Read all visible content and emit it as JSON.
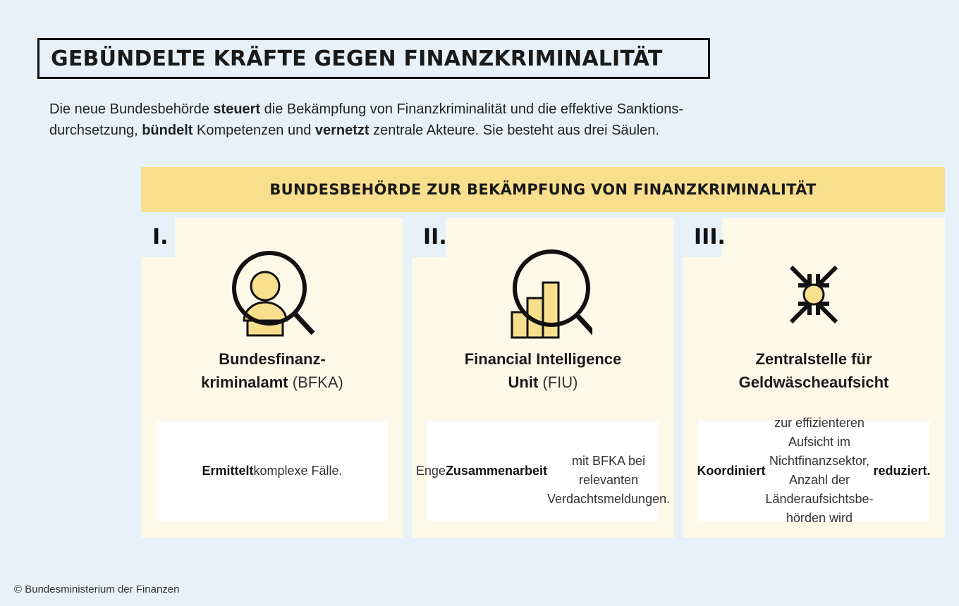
{
  "title": "GEBÜNDELTE KRÄFTE GEGEN FINANZKRIMINALITÄT",
  "intro": {
    "line1": [
      {
        "text": "Die neue Bundesbehörde ",
        "bold": false
      },
      {
        "text": "steuert",
        "bold": true
      },
      {
        "text": " die Bekämpfung von Finanzkriminalität und die effektive Sanktions-",
        "bold": false
      }
    ],
    "line2": [
      {
        "text": "durchsetzung, ",
        "bold": false
      },
      {
        "text": "bündelt",
        "bold": true
      },
      {
        "text": " Kompetenzen und ",
        "bold": false
      },
      {
        "text": "vernetzt",
        "bold": true
      },
      {
        "text": " zentrale Akteure.  Sie besteht aus drei Säulen.",
        "bold": false
      }
    ]
  },
  "banner": "BUNDESBEHÖRDE ZUR BEKÄMPFUNG VON FINANZKRIMINALITÄT",
  "pillars": [
    {
      "numeral": "I.",
      "icon": "magnifier-person-icon",
      "name_bold_1": "Bundesfinanz-",
      "name_bold_2": "kriminalamt",
      "name_normal": " (BFKA)",
      "desc_html": "<b>Ermittelt</b> komplexe Fälle."
    },
    {
      "numeral": "II.",
      "icon": "magnifier-bar-chart-icon",
      "name_bold_1": "Financial Intelligence",
      "name_bold_2": "Unit",
      "name_normal": " (FIU)",
      "desc_html": "Enge <b>Zusammenarbeit</b><br>mit BFKA bei relevanten<br>Verdachtsmeldungen."
    },
    {
      "numeral": "III.",
      "icon": "converging-arrows-icon",
      "name_bold_1": "Zentralstelle für",
      "name_bold_2": "Geldwäscheaufsicht",
      "name_normal": "",
      "desc_html": "<b>Koordiniert</b> zur effizienteren<br>Aufsicht im Nichtfinanzsektor,<br>Anzahl der Länderaufsichtsbe-<br>hörden wird <b>reduziert.</b>"
    }
  ],
  "copyright": "© Bundesministerium der Finanzen",
  "colors": {
    "background": "#e6f1f9",
    "banner": "#f8df8e",
    "card": "#fdf9e8",
    "icon_fill": "#f8df8e",
    "text": "#1a1a1a"
  }
}
